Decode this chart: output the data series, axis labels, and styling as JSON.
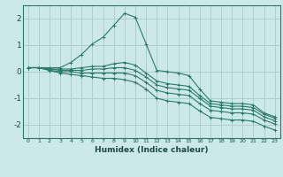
{
  "xlabel": "Humidex (Indice chaleur)",
  "background_color": "#cce8e8",
  "grid_color": "#aacfcf",
  "line_color": "#2a7a6a",
  "x_values": [
    0,
    1,
    2,
    3,
    4,
    5,
    6,
    7,
    8,
    9,
    10,
    11,
    12,
    13,
    14,
    15,
    16,
    17,
    18,
    19,
    20,
    21,
    22,
    23
  ],
  "lines": [
    [
      0.15,
      0.15,
      0.15,
      0.15,
      0.35,
      0.65,
      1.05,
      1.3,
      1.75,
      2.2,
      2.05,
      1.05,
      0.05,
      0.0,
      -0.05,
      -0.15,
      -0.65,
      -1.1,
      -1.15,
      -1.2,
      -1.2,
      -1.25,
      -1.55,
      -1.7
    ],
    [
      0.15,
      0.15,
      0.1,
      0.1,
      0.1,
      0.15,
      0.2,
      0.2,
      0.3,
      0.35,
      0.25,
      -0.05,
      -0.35,
      -0.45,
      -0.5,
      -0.55,
      -0.9,
      -1.2,
      -1.25,
      -1.3,
      -1.3,
      -1.35,
      -1.6,
      -1.75
    ],
    [
      0.15,
      0.15,
      0.1,
      0.05,
      0.05,
      0.05,
      0.1,
      0.1,
      0.15,
      0.15,
      0.05,
      -0.2,
      -0.5,
      -0.6,
      -0.65,
      -0.7,
      -1.0,
      -1.3,
      -1.35,
      -1.4,
      -1.4,
      -1.45,
      -1.7,
      -1.85
    ],
    [
      0.15,
      0.15,
      0.05,
      0.0,
      0.0,
      -0.05,
      -0.05,
      -0.05,
      -0.05,
      -0.05,
      -0.15,
      -0.4,
      -0.7,
      -0.8,
      -0.85,
      -0.9,
      -1.2,
      -1.45,
      -1.5,
      -1.55,
      -1.55,
      -1.6,
      -1.82,
      -1.97
    ],
    [
      0.15,
      0.15,
      0.05,
      -0.05,
      -0.1,
      -0.15,
      -0.2,
      -0.25,
      -0.25,
      -0.3,
      -0.4,
      -0.65,
      -1.0,
      -1.1,
      -1.15,
      -1.2,
      -1.48,
      -1.72,
      -1.77,
      -1.82,
      -1.82,
      -1.87,
      -2.05,
      -2.2
    ]
  ],
  "ylim": [
    -2.5,
    2.5
  ],
  "yticks": [
    -2,
    -1,
    0,
    1,
    2
  ],
  "xlim": [
    -0.5,
    23.5
  ]
}
